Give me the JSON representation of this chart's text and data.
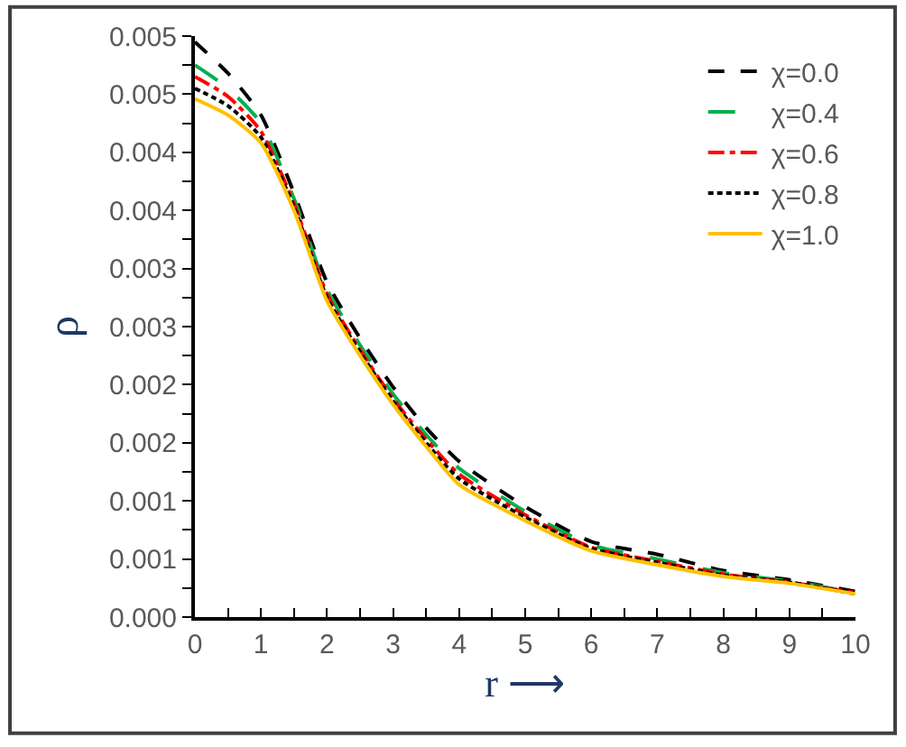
{
  "chart_data": {
    "type": "line",
    "xlabel": "r ⟶",
    "ylabel": "ρ",
    "x": [
      0,
      0.5,
      1,
      1.5,
      2,
      2.5,
      3,
      3.5,
      4,
      5,
      6,
      7,
      8,
      9,
      10
    ],
    "xlim": [
      0,
      10
    ],
    "xticks": [
      0,
      1,
      2,
      3,
      4,
      5,
      6,
      7,
      8,
      9,
      10
    ],
    "ylim": [
      0,
      0.005
    ],
    "yticks": [
      {
        "value": 0,
        "label": "0.000"
      },
      {
        "value": 0.0005,
        "label": "0.001"
      },
      {
        "value": 0.001,
        "label": "0.001"
      },
      {
        "value": 0.0015,
        "label": "0.002"
      },
      {
        "value": 0.002,
        "label": "0.002"
      },
      {
        "value": 0.0025,
        "label": "0.003"
      },
      {
        "value": 0.003,
        "label": "0.003"
      },
      {
        "value": 0.0035,
        "label": "0.004"
      },
      {
        "value": 0.004,
        "label": "0.004"
      },
      {
        "value": 0.0045,
        "label": "0.005"
      },
      {
        "value": 0.005,
        "label": "0.005"
      }
    ],
    "legend": "top right",
    "marker": "none",
    "series": [
      {
        "name": "χ=0.0",
        "color": "#000000",
        "line_style": "dashed",
        "values": [
          0.00495,
          0.00468,
          0.00432,
          0.00365,
          0.00288,
          0.0024,
          0.00198,
          0.00163,
          0.00134,
          0.00095,
          0.00065,
          0.00054,
          0.0004,
          0.00032,
          0.00022
        ]
      },
      {
        "name": "χ=0.4",
        "color": "#00b050",
        "line_style": "longdash",
        "values": [
          0.00475,
          0.00455,
          0.00425,
          0.0036,
          0.00282,
          0.00234,
          0.00192,
          0.00157,
          0.00128,
          0.00091,
          0.00062,
          0.0005,
          0.00038,
          0.00031,
          0.00021
        ]
      },
      {
        "name": "χ=0.6",
        "color": "#ff0000",
        "line_style": "dashdot",
        "values": [
          0.00465,
          0.00448,
          0.00418,
          0.00356,
          0.00278,
          0.0023,
          0.00188,
          0.00153,
          0.00123,
          0.00088,
          0.0006,
          0.00048,
          0.00037,
          0.0003,
          0.00021
        ]
      },
      {
        "name": "χ=0.8",
        "color": "#000000",
        "line_style": "dotted",
        "values": [
          0.00455,
          0.0044,
          0.00413,
          0.00353,
          0.00275,
          0.00228,
          0.00186,
          0.0015,
          0.00119,
          0.00086,
          0.00059,
          0.00047,
          0.00036,
          0.0003,
          0.0002
        ]
      },
      {
        "name": "χ=1.0",
        "color": "#ffc000",
        "line_style": "solid",
        "values": [
          0.00446,
          0.00432,
          0.00408,
          0.0035,
          0.00272,
          0.00225,
          0.00183,
          0.00147,
          0.00114,
          0.00083,
          0.00057,
          0.00045,
          0.00035,
          0.00029,
          0.0002
        ]
      }
    ]
  }
}
